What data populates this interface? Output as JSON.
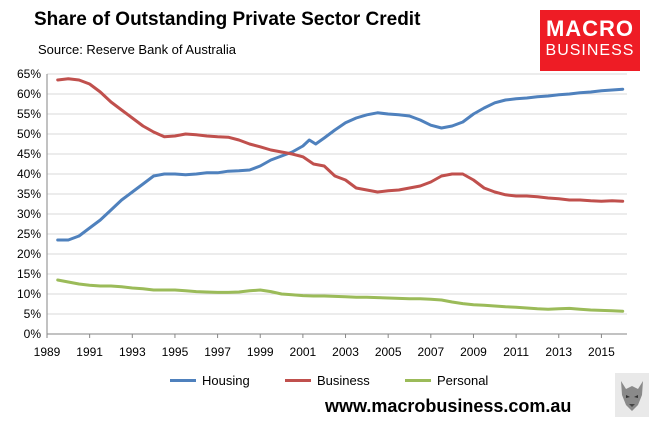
{
  "header": {
    "title": "Share of Outstanding Private Sector Credit",
    "subtitle": "Source: Reserve Bank of Australia"
  },
  "logo": {
    "line1": "MACRO",
    "line2": "BUSINESS",
    "color": "#ee1c25"
  },
  "footer": {
    "website": "www.macrobusiness.com.au"
  },
  "chart_data": {
    "type": "line",
    "title": "Share of Outstanding Private Sector Credit",
    "xlabel": "",
    "ylabel": "",
    "xlim": [
      1989,
      2016.2
    ],
    "ylim": [
      0,
      65
    ],
    "x_ticks": [
      1989,
      1991,
      1993,
      1995,
      1997,
      1999,
      2001,
      2003,
      2005,
      2007,
      2009,
      2011,
      2013,
      2015
    ],
    "y_ticks": [
      0,
      5,
      10,
      15,
      20,
      25,
      30,
      35,
      40,
      45,
      50,
      55,
      60,
      65
    ],
    "y_tick_labels": [
      "0%",
      "5%",
      "10%",
      "15%",
      "20%",
      "25%",
      "30%",
      "35%",
      "40%",
      "45%",
      "50%",
      "55%",
      "60%",
      "65%"
    ],
    "x_tick_labels": [
      "1989",
      "1991",
      "1993",
      "1995",
      "1997",
      "1999",
      "2001",
      "2003",
      "2005",
      "2007",
      "2009",
      "2011",
      "2013",
      "2015"
    ],
    "grid": true,
    "legend_position": "bottom",
    "series": [
      {
        "name": "Housing",
        "color": "#4f81bd",
        "x": [
          1989.5,
          1990,
          1990.5,
          1991,
          1991.5,
          1992,
          1992.5,
          1993,
          1993.5,
          1994,
          1994.5,
          1995,
          1995.5,
          1996,
          1996.5,
          1997,
          1997.5,
          1998,
          1998.5,
          1999,
          1999.5,
          2000,
          2000.5,
          2001,
          2001.3,
          2001.6,
          2002,
          2002.5,
          2003,
          2003.5,
          2004,
          2004.5,
          2005,
          2005.5,
          2006,
          2006.5,
          2007,
          2007.5,
          2008,
          2008.5,
          2009,
          2009.5,
          2010,
          2010.5,
          2011,
          2011.5,
          2012,
          2012.5,
          2013,
          2013.5,
          2014,
          2014.5,
          2015,
          2015.5,
          2016
        ],
        "values": [
          23.5,
          23.5,
          24.5,
          26.5,
          28.5,
          31,
          33.5,
          35.5,
          37.5,
          39.5,
          40,
          40,
          39.8,
          40,
          40.3,
          40.3,
          40.7,
          40.8,
          41,
          42,
          43.5,
          44.5,
          45.5,
          47,
          48.5,
          47.5,
          49,
          51,
          52.8,
          54,
          54.8,
          55.3,
          55,
          54.8,
          54.5,
          53.5,
          52.2,
          51.5,
          52,
          53,
          55,
          56.5,
          57.8,
          58.5,
          58.8,
          59,
          59.3,
          59.5,
          59.8,
          60,
          60.3,
          60.5,
          60.8,
          61,
          61.2
        ]
      },
      {
        "name": "Business",
        "color": "#c0504d",
        "x": [
          1989.5,
          1990,
          1990.5,
          1991,
          1991.5,
          1992,
          1992.5,
          1993,
          1993.5,
          1994,
          1994.5,
          1995,
          1995.5,
          1996,
          1996.5,
          1997,
          1997.5,
          1998,
          1998.5,
          1999,
          1999.5,
          2000,
          2000.5,
          2001,
          2001.5,
          2002,
          2002.5,
          2003,
          2003.5,
          2004,
          2004.5,
          2005,
          2005.5,
          2006,
          2006.5,
          2007,
          2007.5,
          2008,
          2008.5,
          2009,
          2009.5,
          2010,
          2010.5,
          2011,
          2011.5,
          2012,
          2012.5,
          2013,
          2013.5,
          2014,
          2014.5,
          2015,
          2015.5,
          2016
        ],
        "values": [
          63.5,
          63.8,
          63.5,
          62.5,
          60.5,
          58,
          56,
          54,
          52,
          50.5,
          49.3,
          49.5,
          50,
          49.8,
          49.5,
          49.3,
          49.2,
          48.5,
          47.5,
          46.8,
          46,
          45.5,
          45,
          44.3,
          42.5,
          42,
          39.5,
          38.5,
          36.5,
          36,
          35.5,
          35.8,
          36,
          36.5,
          37,
          38,
          39.5,
          40,
          40,
          38.5,
          36.5,
          35.5,
          34.8,
          34.5,
          34.5,
          34.3,
          34,
          33.8,
          33.5,
          33.5,
          33.3,
          33.2,
          33.3,
          33.2
        ]
      },
      {
        "name": "Personal",
        "color": "#9bbb59",
        "x": [
          1989.5,
          1990,
          1990.5,
          1991,
          1991.5,
          1992,
          1992.5,
          1993,
          1993.5,
          1994,
          1994.5,
          1995,
          1995.5,
          1996,
          1996.5,
          1997,
          1997.5,
          1998,
          1998.5,
          1999,
          1999.5,
          2000,
          2000.5,
          2001,
          2001.5,
          2002,
          2002.5,
          2003,
          2003.5,
          2004,
          2004.5,
          2005,
          2005.5,
          2006,
          2006.5,
          2007,
          2007.5,
          2008,
          2008.5,
          2009,
          2009.5,
          2010,
          2010.5,
          2011,
          2011.5,
          2012,
          2012.5,
          2013,
          2013.5,
          2014,
          2014.5,
          2015,
          2015.5,
          2016
        ],
        "values": [
          13.5,
          13,
          12.5,
          12.2,
          12,
          12,
          11.8,
          11.5,
          11.3,
          11,
          11,
          11,
          10.8,
          10.6,
          10.5,
          10.4,
          10.4,
          10.5,
          10.8,
          11,
          10.6,
          10,
          9.8,
          9.6,
          9.5,
          9.5,
          9.4,
          9.3,
          9.2,
          9.2,
          9.1,
          9,
          8.9,
          8.8,
          8.8,
          8.7,
          8.5,
          8,
          7.6,
          7.3,
          7.2,
          7,
          6.8,
          6.7,
          6.5,
          6.3,
          6.2,
          6.3,
          6.4,
          6.2,
          6,
          5.9,
          5.8,
          5.7
        ]
      }
    ]
  }
}
